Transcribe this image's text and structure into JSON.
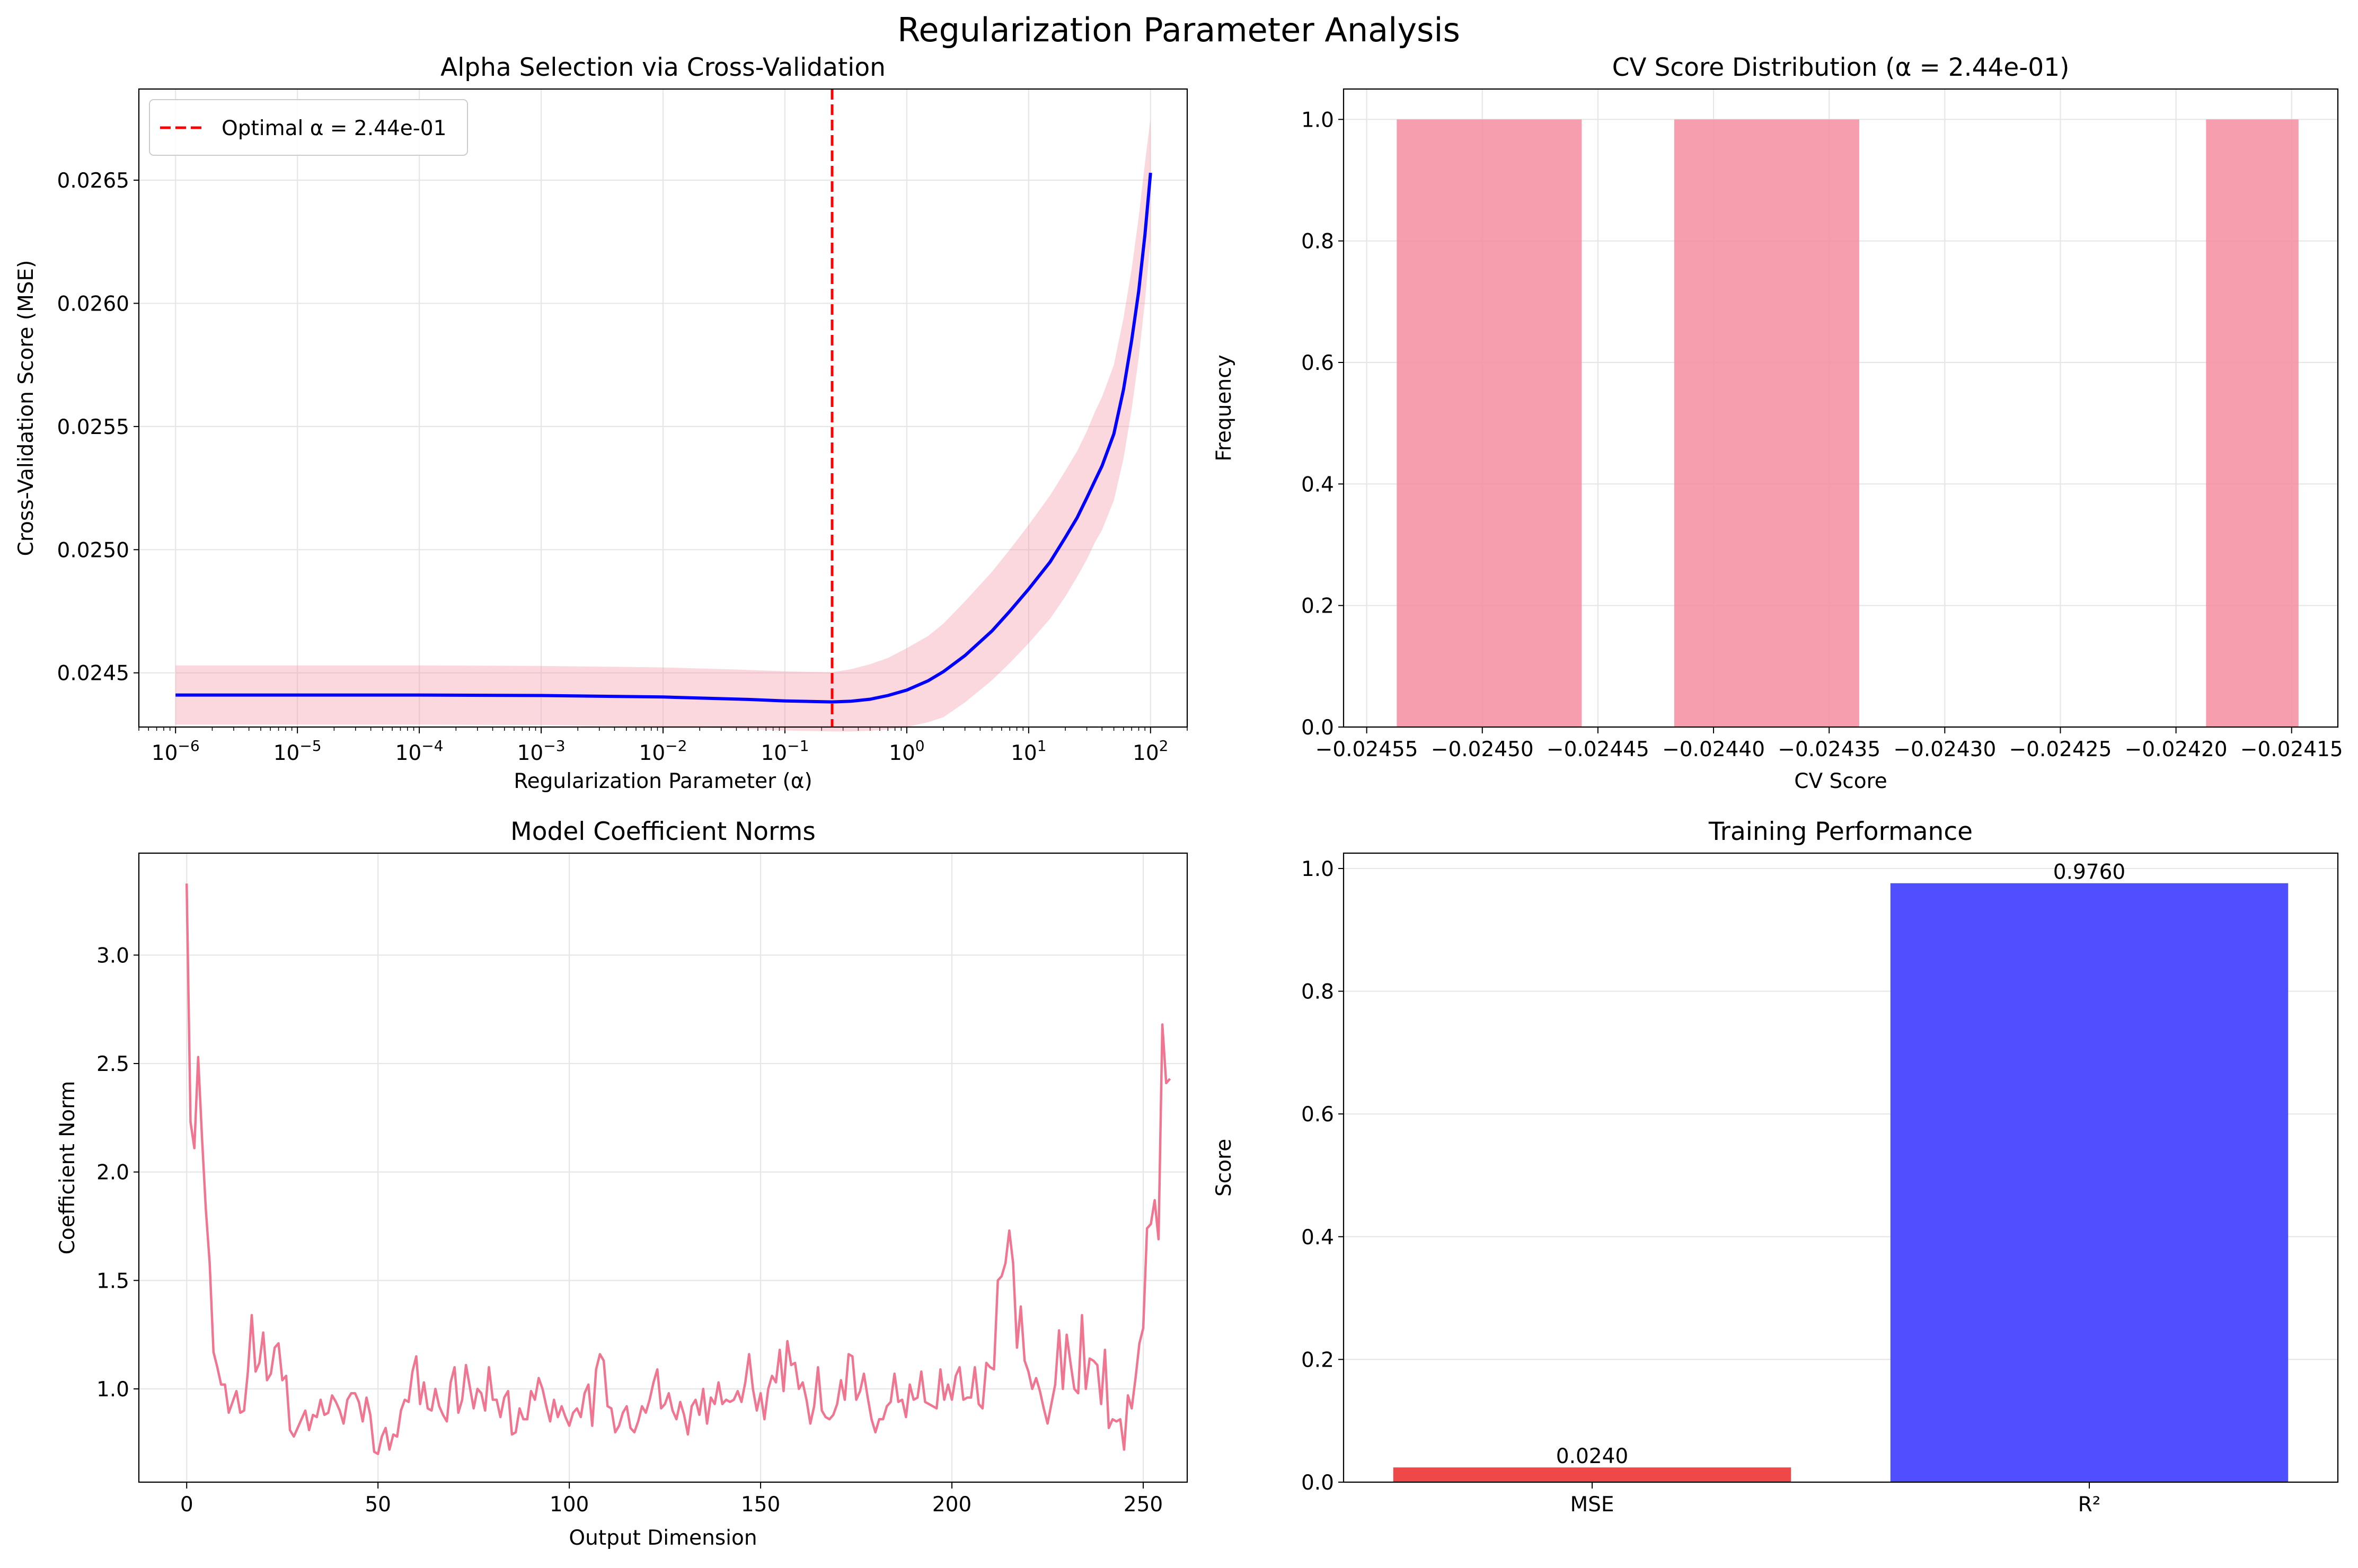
{
  "figure": {
    "suptitle": "Regularization Parameter Analysis"
  },
  "chart_data": [
    {
      "type": "line",
      "title": "Alpha Selection via Cross-Validation",
      "xlabel": "Regularization Parameter (α)",
      "ylabel": "Cross-Validation Score (MSE)",
      "xscale": "log",
      "xlim": [
        5e-07,
        200
      ],
      "ylim": [
        0.02428,
        0.02687
      ],
      "x_ticks": [
        1e-06,
        1e-05,
        0.0001,
        0.001,
        0.01,
        0.1,
        1,
        10,
        100
      ],
      "x_tick_labels": [
        {
          "base": "10",
          "exp": "−6"
        },
        {
          "base": "10",
          "exp": "−5"
        },
        {
          "base": "10",
          "exp": "−4"
        },
        {
          "base": "10",
          "exp": "−3"
        },
        {
          "base": "10",
          "exp": "−2"
        },
        {
          "base": "10",
          "exp": "−1"
        },
        {
          "base": "10",
          "exp": "0"
        },
        {
          "base": "10",
          "exp": "1"
        },
        {
          "base": "10",
          "exp": "2"
        }
      ],
      "y_ticks": [
        0.0245,
        0.025,
        0.0255,
        0.026,
        0.0265
      ],
      "y_tick_labels": [
        "0.0245",
        "0.0250",
        "0.0255",
        "0.0260",
        "0.0265"
      ],
      "grid": true,
      "legend": {
        "position": "top-left",
        "entries": [
          "Optimal α = 2.44e-01"
        ]
      },
      "optimal_alpha": 0.244,
      "series": [
        {
          "color": "#0000ff",
          "x": [
            1e-06,
            1e-05,
            0.0001,
            0.001,
            0.01,
            0.05,
            0.1,
            0.244,
            0.35,
            0.5,
            0.7,
            1,
            1.5,
            2,
            3,
            5,
            7,
            10,
            15,
            20,
            25,
            30,
            35,
            40,
            50,
            60,
            70,
            80,
            90,
            100
          ],
          "y": [
            0.02441,
            0.02441,
            0.02441,
            0.024408,
            0.024402,
            0.024392,
            0.024386,
            0.024382,
            0.024385,
            0.024393,
            0.024408,
            0.02443,
            0.024468,
            0.024505,
            0.02457,
            0.02467,
            0.02475,
            0.02484,
            0.02495,
            0.02505,
            0.02513,
            0.02521,
            0.02528,
            0.02534,
            0.02547,
            0.02565,
            0.02585,
            0.02605,
            0.02628,
            0.02653
          ],
          "band_upper": [
            0.02453,
            0.02453,
            0.02453,
            0.024528,
            0.024522,
            0.024512,
            0.024506,
            0.024502,
            0.024515,
            0.024535,
            0.02456,
            0.0246,
            0.02465,
            0.0247,
            0.02479,
            0.02491,
            0.025,
            0.0251,
            0.02522,
            0.02532,
            0.0254,
            0.02548,
            0.02556,
            0.02562,
            0.02575,
            0.02594,
            0.02614,
            0.02635,
            0.02657,
            0.02675
          ],
          "band_lower": [
            0.02429,
            0.02429,
            0.02429,
            0.024288,
            0.024282,
            0.024272,
            0.024266,
            0.024262,
            0.024262,
            0.024265,
            0.02427,
            0.02428,
            0.0243,
            0.02432,
            0.02438,
            0.02447,
            0.02454,
            0.02462,
            0.02472,
            0.02481,
            0.02489,
            0.02496,
            0.02503,
            0.02508,
            0.0252,
            0.02537,
            0.02557,
            0.02578,
            0.02601,
            0.02626
          ]
        }
      ]
    },
    {
      "type": "bar",
      "title": "CV Score Distribution (α = 2.44e-01)",
      "xlabel": "CV Score",
      "ylabel": "Frequency",
      "xlim": [
        -0.02456,
        -0.02413
      ],
      "ylim": [
        0,
        1.05
      ],
      "x_ticks": [
        -0.02455,
        -0.0245,
        -0.02445,
        -0.0244,
        -0.02435,
        -0.0243,
        -0.02425,
        -0.0242,
        -0.02415
      ],
      "x_tick_labels": [
        "−0.02455",
        "−0.02450",
        "−0.02445",
        "−0.02440",
        "−0.02435",
        "−0.02430",
        "−0.02425",
        "−0.02420",
        "−0.02415"
      ],
      "y_ticks": [
        0,
        0.2,
        0.4,
        0.6,
        0.8,
        1.0
      ],
      "y_tick_labels": [
        "0.0",
        "0.2",
        "0.4",
        "0.6",
        "0.8",
        "1.0"
      ],
      "grid": true,
      "bar_color": "#f48ca0",
      "bins": [
        {
          "x0": -0.024537,
          "x1": -0.024457,
          "count": 1
        },
        {
          "x0": -0.024417,
          "x1": -0.024337,
          "count": 1
        },
        {
          "x0": -0.024187,
          "x1": -0.024147,
          "count": 1
        }
      ]
    },
    {
      "type": "line",
      "title": "Model Coefficient Norms",
      "xlabel": "Output Dimension",
      "ylabel": "Coefficient Norm",
      "xlim": [
        -12.5,
        261.5
      ],
      "ylim": [
        0.57,
        3.47
      ],
      "x_ticks": [
        0,
        50,
        100,
        150,
        200,
        250
      ],
      "x_tick_labels": [
        "0",
        "50",
        "100",
        "150",
        "200",
        "250"
      ],
      "y_ticks": [
        1.0,
        1.5,
        2.0,
        2.5,
        3.0
      ],
      "y_tick_labels": [
        "1.0",
        "1.5",
        "2.0",
        "2.5",
        "3.0"
      ],
      "grid": true,
      "series": [
        {
          "color": "#f07590",
          "y": [
            3.33,
            2.23,
            2.11,
            2.53,
            2.16,
            1.83,
            1.58,
            1.17,
            1.1,
            1.02,
            1.02,
            0.89,
            0.94,
            0.99,
            0.89,
            0.9,
            1.08,
            1.34,
            1.08,
            1.12,
            1.26,
            1.04,
            1.07,
            1.19,
            1.21,
            1.04,
            1.06,
            0.81,
            0.78,
            0.82,
            0.86,
            0.9,
            0.81,
            0.88,
            0.87,
            0.95,
            0.88,
            0.89,
            0.97,
            0.94,
            0.9,
            0.84,
            0.95,
            0.98,
            0.98,
            0.94,
            0.85,
            0.96,
            0.88,
            0.71,
            0.7,
            0.78,
            0.82,
            0.72,
            0.79,
            0.78,
            0.9,
            0.95,
            0.94,
            1.08,
            1.15,
            0.93,
            1.03,
            0.91,
            0.9,
            1.0,
            0.92,
            0.88,
            0.85,
            1.03,
            1.1,
            0.89,
            0.95,
            1.11,
            1.01,
            0.91,
            1.0,
            0.98,
            0.9,
            1.1,
            0.95,
            0.95,
            0.87,
            0.96,
            0.99,
            0.79,
            0.8,
            0.91,
            0.86,
            0.86,
            0.99,
            0.95,
            1.05,
            1.0,
            0.92,
            0.85,
            0.95,
            0.87,
            0.92,
            0.87,
            0.83,
            0.89,
            0.91,
            0.87,
            0.98,
            1.02,
            0.83,
            1.09,
            1.16,
            1.13,
            0.92,
            0.91,
            0.8,
            0.83,
            0.89,
            0.92,
            0.82,
            0.8,
            0.85,
            0.92,
            0.89,
            0.95,
            1.03,
            1.09,
            0.91,
            0.93,
            0.98,
            0.9,
            0.86,
            0.94,
            0.88,
            0.79,
            0.92,
            0.95,
            0.88,
            1.0,
            0.84,
            0.96,
            0.93,
            1.03,
            0.93,
            0.95,
            0.94,
            0.95,
            0.99,
            0.94,
            1.03,
            1.16,
            1.0,
            0.9,
            0.98,
            0.86,
            1.0,
            1.06,
            1.03,
            1.18,
            0.99,
            1.22,
            1.11,
            1.12,
            1.0,
            1.03,
            0.95,
            0.84,
            0.92,
            1.1,
            0.9,
            0.87,
            0.86,
            0.88,
            0.93,
            1.04,
            0.95,
            1.16,
            1.15,
            0.95,
            0.99,
            1.07,
            0.96,
            0.86,
            0.8,
            0.86,
            0.86,
            0.92,
            0.94,
            1.07,
            0.94,
            0.95,
            0.87,
            1.02,
            0.95,
            0.96,
            1.08,
            0.94,
            0.93,
            0.92,
            0.91,
            1.09,
            0.95,
            1.02,
            0.95,
            1.06,
            1.1,
            0.95,
            0.96,
            0.96,
            1.1,
            0.93,
            0.91,
            1.12,
            1.1,
            1.09,
            1.5,
            1.52,
            1.58,
            1.73,
            1.58,
            1.19,
            1.38,
            1.13,
            1.08,
            1.0,
            1.05,
            0.99,
            0.91,
            0.84,
            0.93,
            1.02,
            1.27,
            1.0,
            1.25,
            1.12,
            1.0,
            0.98,
            1.34,
            1.0,
            1.14,
            1.13,
            1.11,
            0.93,
            1.18,
            0.82,
            0.86,
            0.85,
            0.86,
            0.72,
            0.97,
            0.91,
            1.05,
            1.21,
            1.28,
            1.74,
            1.76,
            1.87,
            1.69,
            2.68,
            2.41,
            2.43
          ]
        }
      ]
    },
    {
      "type": "bar",
      "title": "Training Performance",
      "xlabel": "",
      "ylabel": "Score",
      "categories": [
        "MSE",
        "R²"
      ],
      "values": [
        0.024,
        0.976
      ],
      "data_labels": [
        "0.0240",
        "0.9760"
      ],
      "colors": [
        "#ef4444",
        "#4b4bff"
      ],
      "ylim": [
        0,
        1.025
      ],
      "y_ticks": [
        0,
        0.2,
        0.4,
        0.6,
        0.8,
        1.0
      ],
      "y_tick_labels": [
        "0.0",
        "0.2",
        "0.4",
        "0.6",
        "0.8",
        "1.0"
      ],
      "grid": true
    }
  ]
}
